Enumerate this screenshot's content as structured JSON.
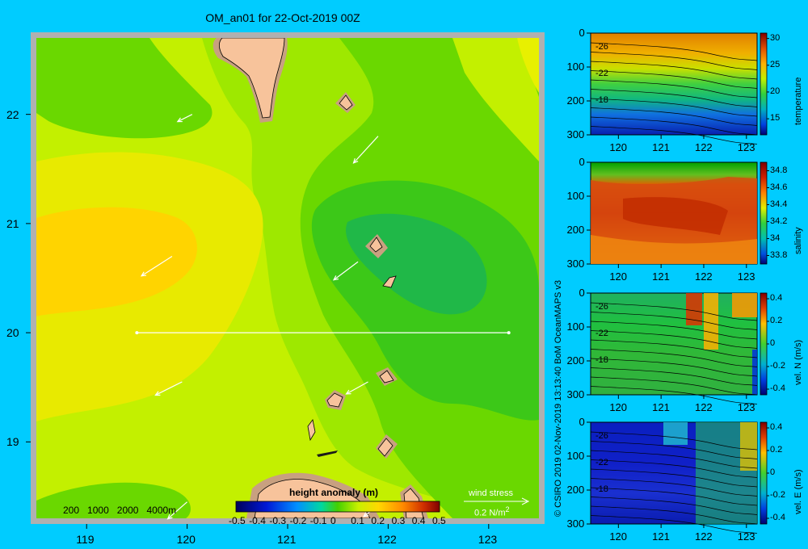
{
  "title": "OM_an01 for 22-Oct-2019 00Z",
  "credit": "© CSIRO 2019   02-Nov-2019 13:13:40 BoM OceanMAPS v3",
  "colors": {
    "background": "#00ccff",
    "map_frame": "#b0b0b0",
    "land": "#f7c39b"
  },
  "chart_data": [
    {
      "type": "heatmap",
      "title": "OM_an01 for 22-Oct-2019 00Z",
      "x_ticks": [
        "119",
        "120",
        "121",
        "122",
        "123"
      ],
      "y_ticks": [
        "22",
        "21",
        "20",
        "19"
      ],
      "xlim": [
        118.5,
        123.5
      ],
      "ylim": [
        18.3,
        22.7
      ],
      "colorbar": {
        "label": "height anomaly (m)",
        "ticks": [
          "-0.5",
          "-0.4",
          "-0.3",
          "-0.2",
          "-0.1",
          "0",
          "0.1",
          "0.2",
          "0.3",
          "0.4",
          "0.5"
        ],
        "range": [
          -0.5,
          0.5
        ]
      },
      "depth_legend": [
        "200",
        "1000",
        "2000",
        "4000m"
      ],
      "wind_legend": {
        "label": "wind stress",
        "value": "0.2 N/m",
        "superscript": "2"
      },
      "section_line": {
        "lat": 20.0,
        "lon_start": 119.5,
        "lon_end": 123.2
      },
      "wind_vectors": [
        {
          "lon": 120.05,
          "lat": 22.0,
          "u": 0.6,
          "v": 0.3
        },
        {
          "lon": 121.9,
          "lat": 21.8,
          "u": 1.1,
          "v": 1.2
        },
        {
          "lon": 119.85,
          "lat": 20.7,
          "u": 1.4,
          "v": 0.9
        },
        {
          "lon": 121.7,
          "lat": 20.65,
          "u": 1.0,
          "v": 0.75
        },
        {
          "lon": 119.95,
          "lat": 19.55,
          "u": 1.1,
          "v": 0.55
        },
        {
          "lon": 121.8,
          "lat": 19.55,
          "u": 0.9,
          "v": 0.5
        },
        {
          "lon": 120.0,
          "lat": 18.45,
          "u": 0.8,
          "v": 0.7
        },
        {
          "lon": 121.95,
          "lat": 18.45,
          "u": 0.8,
          "v": 0.6
        }
      ]
    },
    {
      "type": "heatmap",
      "variable": "temperature",
      "x_ticks": [
        "120",
        "121",
        "122",
        "123"
      ],
      "y_ticks": [
        "0",
        "100",
        "200",
        "300"
      ],
      "colorbar_ticks": [
        "30",
        "25",
        "20",
        "15"
      ],
      "range": [
        12,
        31
      ],
      "contour_labels": [
        "26",
        "22",
        "18"
      ]
    },
    {
      "type": "heatmap",
      "variable": "salinity",
      "x_ticks": [
        "120",
        "121",
        "122",
        "123"
      ],
      "y_ticks": [
        "0",
        "100",
        "200",
        "300"
      ],
      "colorbar_ticks": [
        "34.8",
        "34.6",
        "34.4",
        "34.2",
        "34",
        "33.8"
      ],
      "range": [
        33.7,
        34.9
      ]
    },
    {
      "type": "heatmap",
      "variable": "vel. N (m/s)",
      "x_ticks": [
        "120",
        "121",
        "122",
        "123"
      ],
      "y_ticks": [
        "0",
        "100",
        "200",
        "300"
      ],
      "colorbar_ticks": [
        "0.4",
        "0.2",
        "0",
        "-0.2",
        "-0.4"
      ],
      "range": [
        -0.45,
        0.45
      ],
      "contour_labels": [
        "26",
        "22",
        "18"
      ]
    },
    {
      "type": "heatmap",
      "variable": "vel. E (m/s)",
      "x_ticks": [
        "120",
        "121",
        "122",
        "123"
      ],
      "y_ticks": [
        "0",
        "100",
        "200",
        "300"
      ],
      "colorbar_ticks": [
        "0.4",
        "0.2",
        "0",
        "-0.2",
        "-0.4"
      ],
      "range": [
        -0.45,
        0.45
      ],
      "contour_labels": [
        "26",
        "22",
        "18"
      ]
    }
  ]
}
